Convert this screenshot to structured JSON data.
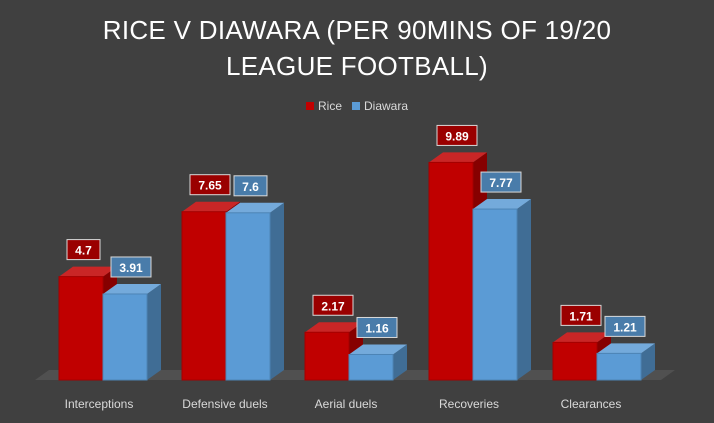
{
  "chart_data": {
    "type": "bar",
    "title_lines": [
      "RICE V DIAWARA (PER 90MINS OF 19/20",
      "LEAGUE FOOTBALL)"
    ],
    "categories": [
      "Interceptions",
      "Defensive duels",
      "Aerial duels",
      "Recoveries",
      "Clearances"
    ],
    "series": [
      {
        "name": "Rice",
        "values": [
          4.7,
          7.65,
          2.17,
          9.89,
          1.71
        ],
        "color": "#c00000"
      },
      {
        "name": "Diawara",
        "values": [
          3.91,
          7.6,
          1.16,
          7.77,
          1.21
        ],
        "color": "#5b9bd5"
      }
    ],
    "ylim": [
      0,
      10
    ],
    "grid": false,
    "legend_position": "top",
    "style": "3d-clustered-column",
    "background_color": "#404040"
  }
}
